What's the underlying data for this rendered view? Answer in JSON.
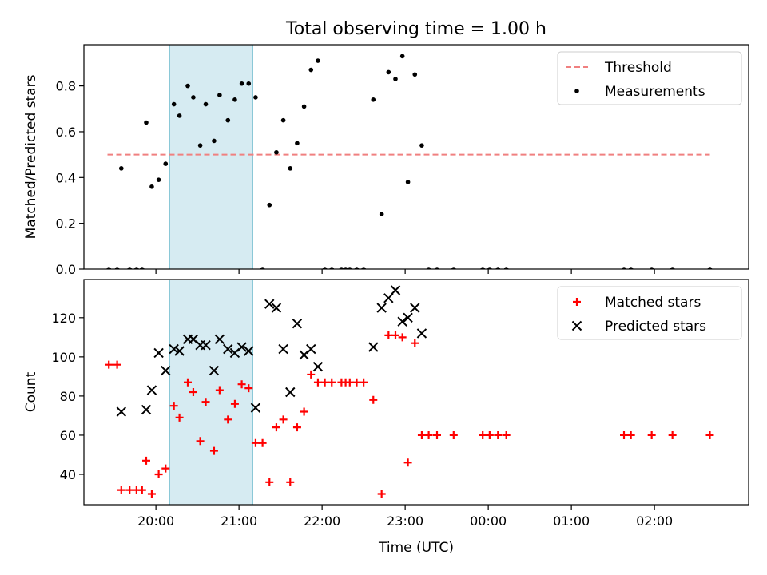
{
  "chart_data": [
    {
      "type": "scatter",
      "title": "Total observing time = 1.00 h",
      "xlabel": "",
      "ylabel": "Matched/Predicted stars",
      "xlim": [
        "19:08",
        "03:08"
      ],
      "ylim": [
        0,
        0.98
      ],
      "yticks": [
        0,
        0.2,
        0.4,
        0.6,
        0.8
      ],
      "ytick_labels": [
        "0.0",
        "0.2",
        "0.4",
        "0.6",
        "0.8"
      ],
      "xticks": [
        "20:00",
        "21:00",
        "22:00",
        "23:00",
        "00:00",
        "01:00",
        "02:00"
      ],
      "show_xtick_labels": false,
      "shaded_span": {
        "start": "20:10",
        "end": "21:10",
        "color": "#add8e6"
      },
      "legend": {
        "placement": "top-right",
        "entries": [
          "Threshold",
          "Measurements"
        ]
      },
      "series": [
        {
          "name": "Threshold",
          "kind": "line",
          "style": "dashed",
          "color": "#f08080",
          "points": [
            {
              "x": "19:25",
              "y": 0.5
            },
            {
              "x": "02:40",
              "y": 0.5
            }
          ]
        },
        {
          "name": "Measurements",
          "kind": "points",
          "marker": "dot",
          "color": "#000000",
          "points": [
            {
              "x": "19:26",
              "y": 0
            },
            {
              "x": "19:32",
              "y": 0
            },
            {
              "x": "19:35",
              "y": 0.44
            },
            {
              "x": "19:41",
              "y": 0
            },
            {
              "x": "19:46",
              "y": 0
            },
            {
              "x": "19:50",
              "y": 0
            },
            {
              "x": "19:53",
              "y": 0.64
            },
            {
              "x": "19:57",
              "y": 0.36
            },
            {
              "x": "20:02",
              "y": 0.39
            },
            {
              "x": "20:07",
              "y": 0.46
            },
            {
              "x": "20:13",
              "y": 0.72
            },
            {
              "x": "20:17",
              "y": 0.67
            },
            {
              "x": "20:23",
              "y": 0.8
            },
            {
              "x": "20:27",
              "y": 0.75
            },
            {
              "x": "20:32",
              "y": 0.54
            },
            {
              "x": "20:36",
              "y": 0.72
            },
            {
              "x": "20:42",
              "y": 0.56
            },
            {
              "x": "20:46",
              "y": 0.76
            },
            {
              "x": "20:52",
              "y": 0.65
            },
            {
              "x": "20:57",
              "y": 0.74
            },
            {
              "x": "21:02",
              "y": 0.81
            },
            {
              "x": "21:07",
              "y": 0.81
            },
            {
              "x": "21:12",
              "y": 0.75
            },
            {
              "x": "21:17",
              "y": 0
            },
            {
              "x": "21:22",
              "y": 0.28
            },
            {
              "x": "21:27",
              "y": 0.51
            },
            {
              "x": "21:32",
              "y": 0.65
            },
            {
              "x": "21:37",
              "y": 0.44
            },
            {
              "x": "21:42",
              "y": 0.55
            },
            {
              "x": "21:47",
              "y": 0.71
            },
            {
              "x": "21:52",
              "y": 0.87
            },
            {
              "x": "21:57",
              "y": 0.91
            },
            {
              "x": "22:02",
              "y": 0
            },
            {
              "x": "22:07",
              "y": 0
            },
            {
              "x": "22:14",
              "y": 0
            },
            {
              "x": "22:17",
              "y": 0
            },
            {
              "x": "22:20",
              "y": 0
            },
            {
              "x": "22:25",
              "y": 0
            },
            {
              "x": "22:30",
              "y": 0
            },
            {
              "x": "22:37",
              "y": 0.74
            },
            {
              "x": "22:43",
              "y": 0.24
            },
            {
              "x": "22:48",
              "y": 0.86
            },
            {
              "x": "22:53",
              "y": 0.83
            },
            {
              "x": "22:58",
              "y": 0.93
            },
            {
              "x": "23:02",
              "y": 0.38
            },
            {
              "x": "23:07",
              "y": 0.85
            },
            {
              "x": "23:12",
              "y": 0.54
            },
            {
              "x": "23:17",
              "y": 0
            },
            {
              "x": "23:23",
              "y": 0
            },
            {
              "x": "23:35",
              "y": 0
            },
            {
              "x": "23:56",
              "y": 0
            },
            {
              "x": "00:01",
              "y": 0
            },
            {
              "x": "00:07",
              "y": 0
            },
            {
              "x": "00:13",
              "y": 0
            },
            {
              "x": "01:38",
              "y": 0
            },
            {
              "x": "01:43",
              "y": 0
            },
            {
              "x": "01:58",
              "y": 0
            },
            {
              "x": "02:13",
              "y": 0
            },
            {
              "x": "02:40",
              "y": 0
            }
          ]
        }
      ]
    },
    {
      "type": "scatter",
      "title": "",
      "xlabel": "Time (UTC)",
      "ylabel": "Count",
      "xlim": [
        "19:08",
        "03:08"
      ],
      "ylim": [
        24.5,
        139.5
      ],
      "yticks": [
        40,
        60,
        80,
        100,
        120
      ],
      "ytick_labels": [
        "40",
        "60",
        "80",
        "100",
        "120"
      ],
      "xticks": [
        "20:00",
        "21:00",
        "22:00",
        "23:00",
        "00:00",
        "01:00",
        "02:00"
      ],
      "show_xtick_labels": true,
      "shaded_span": {
        "start": "20:10",
        "end": "21:10",
        "color": "#add8e6"
      },
      "legend": {
        "placement": "top-right",
        "entries": [
          "Matched stars",
          "Predicted stars"
        ]
      },
      "series": [
        {
          "name": "Matched stars",
          "kind": "points",
          "marker": "plus",
          "color": "#ff0000",
          "points": [
            {
              "x": "19:26",
              "y": 96
            },
            {
              "x": "19:32",
              "y": 96
            },
            {
              "x": "19:35",
              "y": 32
            },
            {
              "x": "19:41",
              "y": 32
            },
            {
              "x": "19:46",
              "y": 32
            },
            {
              "x": "19:50",
              "y": 32
            },
            {
              "x": "19:53",
              "y": 47
            },
            {
              "x": "19:57",
              "y": 30
            },
            {
              "x": "20:02",
              "y": 40
            },
            {
              "x": "20:07",
              "y": 43
            },
            {
              "x": "20:13",
              "y": 75
            },
            {
              "x": "20:17",
              "y": 69
            },
            {
              "x": "20:23",
              "y": 87
            },
            {
              "x": "20:27",
              "y": 82
            },
            {
              "x": "20:32",
              "y": 57
            },
            {
              "x": "20:36",
              "y": 77
            },
            {
              "x": "20:42",
              "y": 52
            },
            {
              "x": "20:46",
              "y": 83
            },
            {
              "x": "20:52",
              "y": 68
            },
            {
              "x": "20:57",
              "y": 76
            },
            {
              "x": "21:02",
              "y": 86
            },
            {
              "x": "21:07",
              "y": 84
            },
            {
              "x": "21:12",
              "y": 56
            },
            {
              "x": "21:17",
              "y": 56
            },
            {
              "x": "21:22",
              "y": 36
            },
            {
              "x": "21:27",
              "y": 64
            },
            {
              "x": "21:32",
              "y": 68
            },
            {
              "x": "21:37",
              "y": 36
            },
            {
              "x": "21:42",
              "y": 64
            },
            {
              "x": "21:47",
              "y": 72
            },
            {
              "x": "21:52",
              "y": 91
            },
            {
              "x": "21:57",
              "y": 87
            },
            {
              "x": "22:02",
              "y": 87
            },
            {
              "x": "22:07",
              "y": 87
            },
            {
              "x": "22:14",
              "y": 87
            },
            {
              "x": "22:17",
              "y": 87
            },
            {
              "x": "22:20",
              "y": 87
            },
            {
              "x": "22:25",
              "y": 87
            },
            {
              "x": "22:30",
              "y": 87
            },
            {
              "x": "22:37",
              "y": 78
            },
            {
              "x": "22:43",
              "y": 30
            },
            {
              "x": "22:48",
              "y": 111
            },
            {
              "x": "22:53",
              "y": 111
            },
            {
              "x": "22:58",
              "y": 110
            },
            {
              "x": "23:02",
              "y": 46
            },
            {
              "x": "23:07",
              "y": 107
            },
            {
              "x": "23:12",
              "y": 60
            },
            {
              "x": "23:17",
              "y": 60
            },
            {
              "x": "23:23",
              "y": 60
            },
            {
              "x": "23:35",
              "y": 60
            },
            {
              "x": "23:56",
              "y": 60
            },
            {
              "x": "00:01",
              "y": 60
            },
            {
              "x": "00:07",
              "y": 60
            },
            {
              "x": "00:13",
              "y": 60
            },
            {
              "x": "01:38",
              "y": 60
            },
            {
              "x": "01:43",
              "y": 60
            },
            {
              "x": "01:58",
              "y": 60
            },
            {
              "x": "02:13",
              "y": 60
            },
            {
              "x": "02:40",
              "y": 60
            }
          ]
        },
        {
          "name": "Predicted stars",
          "kind": "points",
          "marker": "x",
          "color": "#000000",
          "points": [
            {
              "x": "19:35",
              "y": 72
            },
            {
              "x": "19:53",
              "y": 73
            },
            {
              "x": "19:57",
              "y": 83
            },
            {
              "x": "20:02",
              "y": 102
            },
            {
              "x": "20:07",
              "y": 93
            },
            {
              "x": "20:13",
              "y": 104
            },
            {
              "x": "20:17",
              "y": 103
            },
            {
              "x": "20:23",
              "y": 109
            },
            {
              "x": "20:27",
              "y": 109
            },
            {
              "x": "20:32",
              "y": 106
            },
            {
              "x": "20:36",
              "y": 106
            },
            {
              "x": "20:42",
              "y": 93
            },
            {
              "x": "20:46",
              "y": 109
            },
            {
              "x": "20:52",
              "y": 104
            },
            {
              "x": "20:57",
              "y": 102
            },
            {
              "x": "21:02",
              "y": 105
            },
            {
              "x": "21:07",
              "y": 103
            },
            {
              "x": "21:12",
              "y": 74
            },
            {
              "x": "21:22",
              "y": 127
            },
            {
              "x": "21:27",
              "y": 125
            },
            {
              "x": "21:32",
              "y": 104
            },
            {
              "x": "21:37",
              "y": 82
            },
            {
              "x": "21:42",
              "y": 117
            },
            {
              "x": "21:47",
              "y": 101
            },
            {
              "x": "21:52",
              "y": 104
            },
            {
              "x": "21:57",
              "y": 95
            },
            {
              "x": "22:37",
              "y": 105
            },
            {
              "x": "22:43",
              "y": 125
            },
            {
              "x": "22:48",
              "y": 130
            },
            {
              "x": "22:53",
              "y": 134
            },
            {
              "x": "22:58",
              "y": 118
            },
            {
              "x": "23:02",
              "y": 120
            },
            {
              "x": "23:07",
              "y": 125
            },
            {
              "x": "23:12",
              "y": 112
            }
          ]
        }
      ]
    }
  ]
}
